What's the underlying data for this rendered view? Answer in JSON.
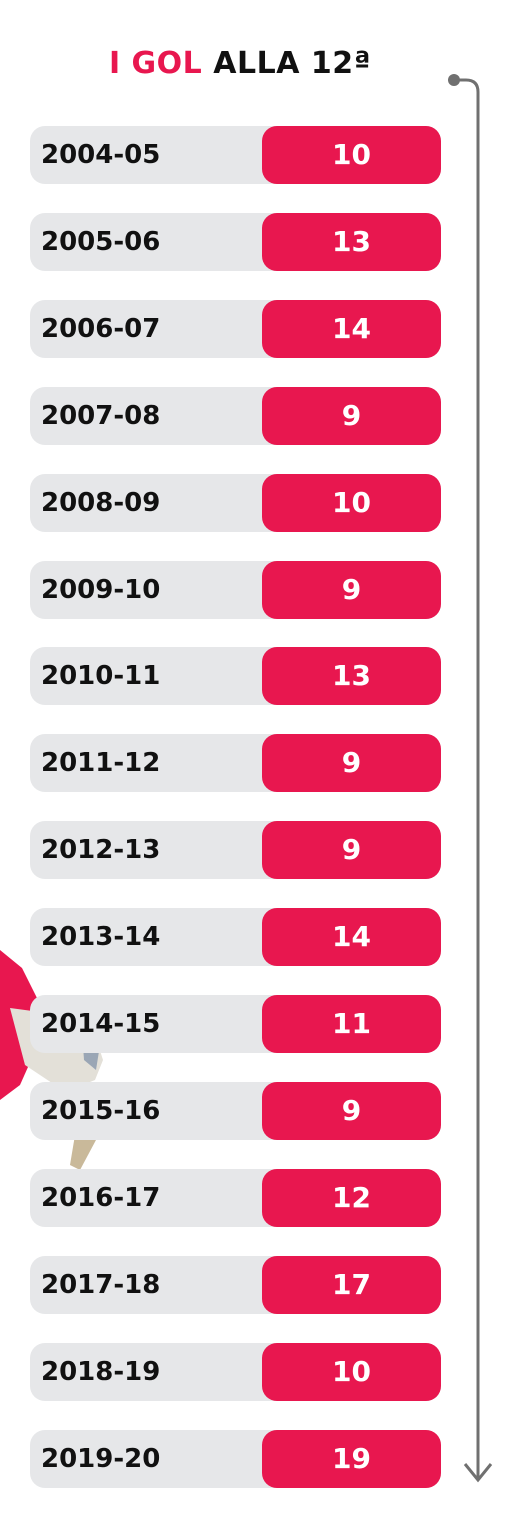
{
  "title": {
    "part1": "I GOL",
    "part2": "ALLA 12ª"
  },
  "colors": {
    "accent": "#e8174f",
    "row_bg": "#e6e7e9",
    "text": "#111111",
    "arrow": "#707070"
  },
  "chart_data": {
    "type": "bar",
    "title": "I GOL ALLA 12ª",
    "categories": [
      "2004-05",
      "2005-06",
      "2006-07",
      "2007-08",
      "2008-09",
      "2009-10",
      "2010-11",
      "2011-12",
      "2012-13",
      "2013-14",
      "2014-15",
      "2015-16",
      "2016-17",
      "2017-18",
      "2018-19",
      "2019-20"
    ],
    "values": [
      10,
      13,
      14,
      9,
      10,
      9,
      13,
      9,
      9,
      14,
      11,
      9,
      12,
      17,
      10,
      19
    ],
    "orientation": "table-list",
    "grid": false,
    "legend": "none"
  }
}
